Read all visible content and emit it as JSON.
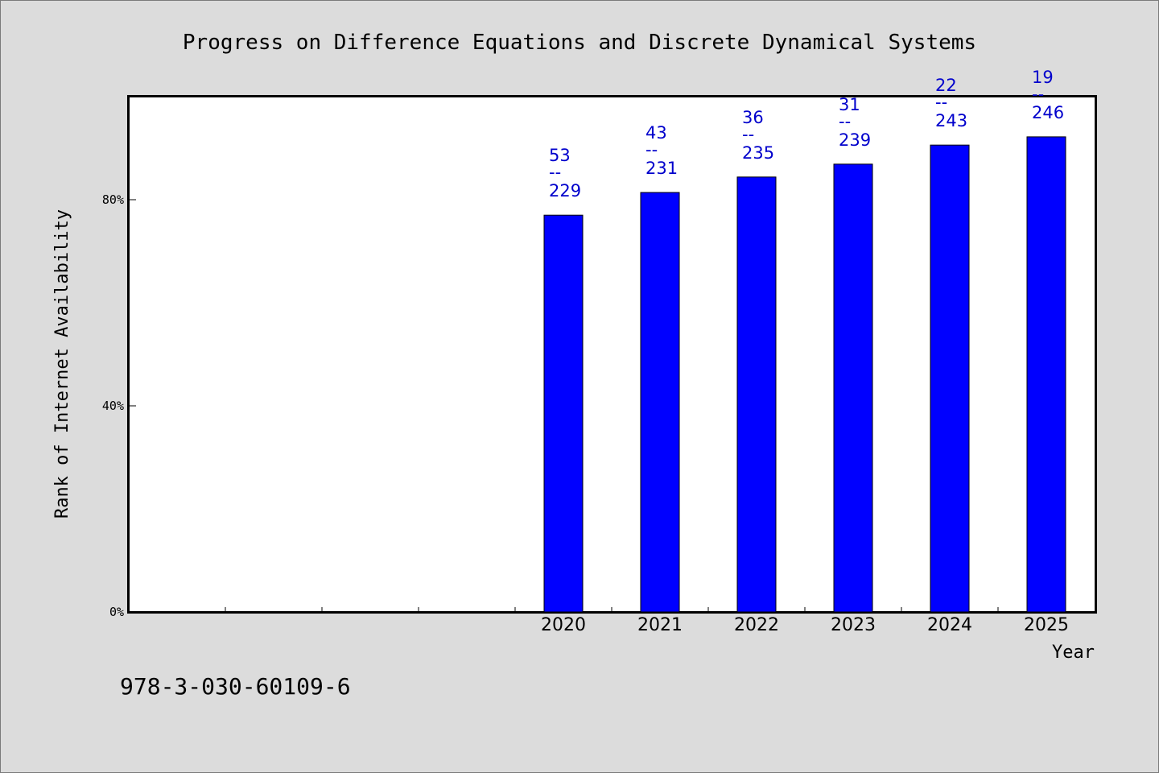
{
  "chart_data": {
    "type": "bar",
    "title": "Progress on Difference Equations and Discrete Dynamical Systems",
    "xlabel": "Year",
    "ylabel": "Rank of Internet Availability",
    "categories": [
      "",
      "",
      "",
      "",
      "2020",
      "2021",
      "2022",
      "2023",
      "2024",
      "2025"
    ],
    "values": [
      null,
      null,
      null,
      null,
      77,
      81.4,
      84.4,
      86.9,
      90.6,
      92.2
    ],
    "value_labels": [
      {
        "num": "53",
        "den": "229"
      },
      {
        "num": "43",
        "den": "231"
      },
      {
        "num": "36",
        "den": "235"
      },
      {
        "num": "31",
        "den": "239"
      },
      {
        "num": "22",
        "den": "243"
      },
      {
        "num": "19",
        "den": "246"
      }
    ],
    "label_separator": "--",
    "yticks": [
      {
        "value": 0,
        "label": "0%"
      },
      {
        "value": 40,
        "label": "40%"
      },
      {
        "value": 80,
        "label": "80%"
      }
    ],
    "ylim": [
      0,
      100
    ],
    "bar_color": "#0000ff",
    "label_color": "#0000cc",
    "grid": false
  },
  "footer": {
    "isbn": "978-3-030-60109-6"
  }
}
